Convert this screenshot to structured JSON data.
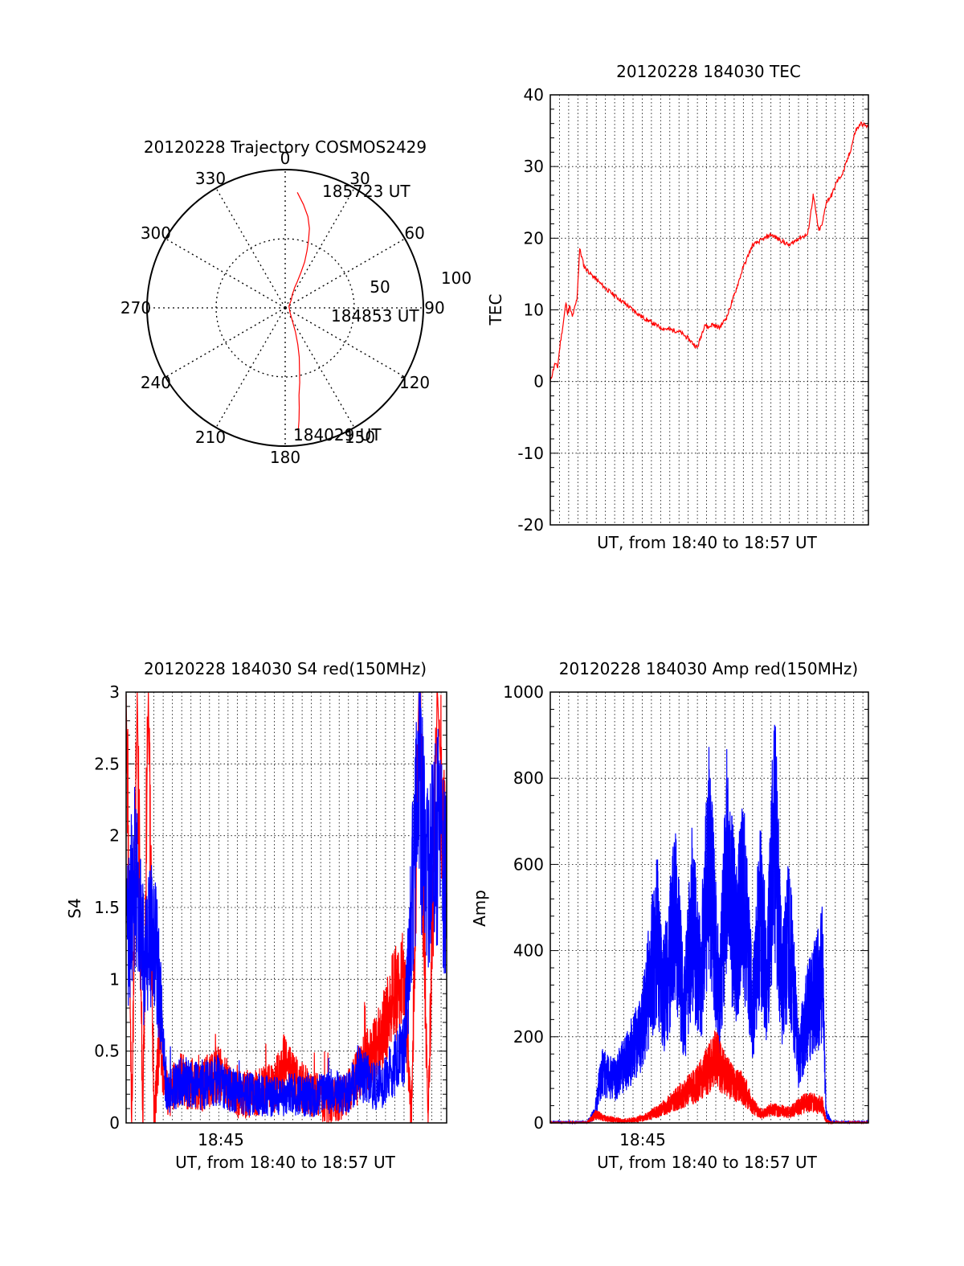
{
  "colors": {
    "red": "#ff0000",
    "blue": "#0000ff",
    "axis": "#000000"
  },
  "trajectory": {
    "title": "20120228 Trajectory COSMOS2429",
    "azimuth_labels": [
      "0",
      "30",
      "60",
      "90",
      "120",
      "150",
      "180",
      "210",
      "240",
      "270",
      "300",
      "330"
    ],
    "elevation_labels": [
      "100",
      "50"
    ],
    "point_labels": [
      "185723 UT",
      "184853 UT",
      "184029 UT"
    ],
    "chart_data": {
      "type": "scatter",
      "projection": "polar",
      "series": [
        {
          "azimuth": [
            6,
            10,
            14,
            17,
            19,
            21,
            23,
            24,
            25,
            25,
            26,
            28,
            32,
            35,
            38,
            66,
            135,
            150,
            157,
            161,
            164,
            167,
            169,
            171,
            172,
            173,
            174
          ],
          "radius": [
            84,
            76,
            68,
            60,
            52,
            44,
            36,
            28,
            20,
            16,
            14,
            11,
            9,
            8,
            7,
            3,
            5,
            10,
            19,
            28,
            37,
            46,
            55,
            64,
            73,
            82,
            90
          ]
        }
      ]
    }
  },
  "tec": {
    "title": "20120228 184030 TEC",
    "xlabel": "UT, from 18:40 to 18:57 UT",
    "ylabel": "TEC",
    "yticks": [
      "-20",
      "-10",
      "0",
      "10",
      "20",
      "30",
      "40"
    ],
    "chart_data": {
      "type": "line",
      "x_unit": "minutes after 18:40 UT",
      "xlim": [
        0,
        17.3
      ],
      "ylim": [
        -20,
        40
      ],
      "series": [
        {
          "x": [
            0,
            0.25,
            0.4,
            0.55,
            0.7,
            0.85,
            0.95,
            1.05,
            1.2,
            1.3,
            1.45,
            1.6,
            1.75,
            1.85,
            2.2,
            3.0,
            4.0,
            5.0,
            6.0,
            7.0,
            7.5,
            8.0,
            8.4,
            8.6,
            8.8,
            9.2,
            9.6,
            10.0,
            10.5,
            11.0,
            12.0,
            13.0,
            13.5,
            14.0,
            14.3,
            14.6,
            14.8,
            15.0,
            15.3,
            15.6,
            15.9,
            16.3,
            16.6,
            16.9,
            17.3
          ],
          "y": [
            0,
            2.5,
            2.0,
            5.5,
            8.0,
            11.0,
            9.5,
            10.5,
            9.0,
            10.0,
            11.5,
            18.5,
            17.0,
            16.0,
            15.0,
            13.0,
            11.0,
            9.0,
            7.5,
            7.0,
            6.0,
            4.7,
            8.0,
            7.5,
            8.0,
            7.5,
            9.0,
            12.0,
            16.0,
            19.0,
            20.5,
            19.0,
            20.0,
            20.5,
            26.0,
            21.0,
            22.0,
            25.0,
            26.0,
            28.0,
            29.0,
            32.0,
            35.0,
            36.0,
            35.5
          ]
        }
      ]
    }
  },
  "s4": {
    "title": "20120228 184030 S4 red(150MHz)",
    "xlabel": "UT, from 18:40 to 18:57 UT",
    "ylabel": "S4",
    "xtick_label": "18:45",
    "yticks": [
      "0",
      "0.5",
      "1",
      "1.5",
      "2",
      "2.5",
      "3"
    ],
    "chart_data": {
      "type": "line",
      "x_unit": "minutes after 18:40 UT",
      "xlim": [
        0,
        17.3
      ],
      "ylim": [
        0,
        3
      ],
      "series": [
        {
          "color": "red",
          "x": [
            0,
            0.3,
            0.6,
            0.9,
            1.2,
            1.5,
            1.8,
            2.2,
            3.0,
            4.0,
            5.0,
            6.0,
            7.0,
            8.0,
            8.5,
            9.0,
            10.0,
            11.0,
            12.0,
            12.8,
            13.5,
            14.0,
            14.5,
            15.0,
            15.4,
            15.8,
            16.3,
            16.8,
            17.3
          ],
          "y": [
            3.0,
            0.0,
            3.0,
            0.0,
            3.0,
            0.0,
            0.6,
            0.2,
            0.3,
            0.25,
            0.35,
            0.2,
            0.2,
            0.25,
            0.4,
            0.3,
            0.2,
            0.15,
            0.2,
            0.4,
            0.5,
            0.7,
            0.9,
            1.0,
            0.0,
            3.0,
            0.0,
            3.0,
            1.5
          ]
        },
        {
          "color": "blue",
          "x": [
            0,
            0.5,
            1.0,
            1.5,
            1.8,
            2.2,
            3.0,
            4.0,
            5.0,
            6.0,
            7.0,
            8.0,
            9.0,
            10.0,
            11.0,
            12.0,
            12.5,
            13.0,
            13.5,
            14.0,
            14.5,
            15.0,
            15.4,
            15.8,
            16.3,
            16.8,
            17.3
          ],
          "y": [
            1.2,
            1.8,
            1.1,
            1.4,
            0.9,
            0.2,
            0.3,
            0.25,
            0.3,
            0.2,
            0.2,
            0.18,
            0.2,
            0.18,
            0.22,
            0.2,
            0.35,
            0.3,
            0.25,
            0.3,
            0.4,
            0.5,
            1.5,
            2.3,
            1.7,
            2.0,
            1.6
          ]
        }
      ]
    }
  },
  "amp": {
    "title": "20120228 184030 Amp red(150MHz)",
    "xlabel": "UT, from 18:40 to 18:57 UT",
    "ylabel": "Amp",
    "xtick_label": "18:45",
    "yticks": [
      "0",
      "200",
      "400",
      "600",
      "800",
      "1000"
    ],
    "chart_data": {
      "type": "line",
      "x_unit": "minutes after 18:40 UT",
      "xlim": [
        0,
        17.3
      ],
      "ylim": [
        0,
        1000
      ],
      "series": [
        {
          "color": "red",
          "x": [
            0,
            2.0,
            2.5,
            3.0,
            4.0,
            5.0,
            6.0,
            7.0,
            8.0,
            8.5,
            9.0,
            9.5,
            10.0,
            10.5,
            11.0,
            11.5,
            12.0,
            13.0,
            14.0,
            14.8,
            15.0,
            15.3,
            17.3
          ],
          "y": [
            0,
            0,
            20,
            10,
            5,
            10,
            30,
            60,
            90,
            120,
            150,
            110,
            90,
            80,
            40,
            20,
            30,
            25,
            50,
            40,
            5,
            0,
            0
          ]
        },
        {
          "color": "blue",
          "x": [
            0,
            2.0,
            2.4,
            2.8,
            3.5,
            4.2,
            5.0,
            5.8,
            6.2,
            6.8,
            7.3,
            7.7,
            8.2,
            8.6,
            9.2,
            9.6,
            10.1,
            10.5,
            11.0,
            11.4,
            11.8,
            12.2,
            12.6,
            13.0,
            13.5,
            14.0,
            14.5,
            14.8,
            15.0,
            15.3,
            17.3
          ],
          "y": [
            0,
            0,
            20,
            120,
            100,
            150,
            220,
            430,
            300,
            480,
            260,
            470,
            330,
            640,
            280,
            600,
            420,
            540,
            260,
            490,
            330,
            700,
            300,
            440,
            150,
            260,
            300,
            350,
            20,
            0,
            0
          ]
        }
      ]
    }
  }
}
